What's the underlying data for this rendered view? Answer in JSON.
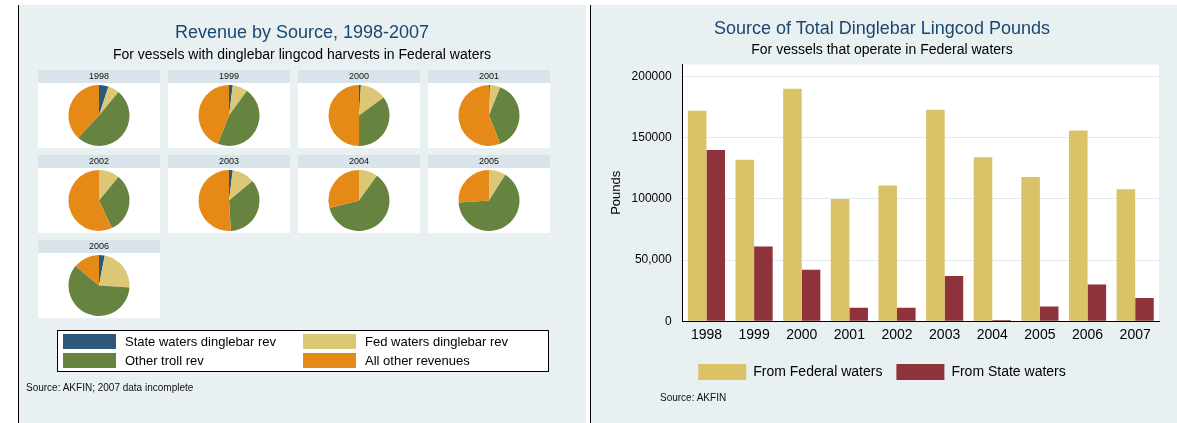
{
  "chart_data": [
    {
      "type": "other",
      "title": "Revenue by Source, 1998-2007",
      "subtitle": "For vessels with dinglebar lingcod harvests in Federal waters",
      "annotations": [
        "Source: AKFIN; 2007 data incomplete"
      ]
    },
    {
      "type": "pie",
      "title": "1998",
      "categories": [
        "State waters dinglebar rev",
        "Fed waters dinglebar rev",
        "Other troll rev",
        "All other revenues"
      ],
      "values": [
        5,
        6,
        51,
        38
      ],
      "colors": [
        "#2d587c",
        "#dcc774",
        "#66843f",
        "#e58a17"
      ],
      "legend": "bottom"
    },
    {
      "type": "pie",
      "title": "1999",
      "categories": [
        null,
        null,
        null,
        null
      ],
      "values": [
        2,
        8,
        46,
        44
      ],
      "colors": [
        "#2d587c",
        "#dcc774",
        "#66843f",
        "#e58a17"
      ]
    },
    {
      "type": "pie",
      "title": "2000",
      "categories": [
        null,
        null,
        null,
        null
      ],
      "values": [
        1,
        14,
        35,
        50
      ],
      "colors": [
        "#2d587c",
        "#dcc774",
        "#66843f",
        "#e58a17"
      ]
    },
    {
      "type": "pie",
      "title": "2001",
      "categories": [
        null,
        null,
        null,
        null
      ],
      "values": [
        0.5,
        5.5,
        38,
        56
      ],
      "colors": [
        "#2d587c",
        "#dcc774",
        "#66843f",
        "#e58a17"
      ]
    },
    {
      "type": "pie",
      "title": "2002",
      "categories": [
        null,
        null,
        null,
        null
      ],
      "values": [
        0,
        11,
        32,
        57
      ],
      "colors": [
        "#2d587c",
        "#dcc774",
        "#66843f",
        "#e58a17"
      ]
    },
    {
      "type": "pie",
      "title": "2003",
      "categories": [
        null,
        null,
        null,
        null
      ],
      "values": [
        2,
        12,
        35,
        51
      ],
      "colors": [
        "#2d587c",
        "#dcc774",
        "#66843f",
        "#e58a17"
      ]
    },
    {
      "type": "pie",
      "title": "2004",
      "categories": [
        null,
        null,
        null,
        null
      ],
      "values": [
        0,
        10,
        61,
        29
      ],
      "colors": [
        "#2d587c",
        "#dcc774",
        "#66843f",
        "#e58a17"
      ]
    },
    {
      "type": "pie",
      "title": "2005",
      "categories": [
        null,
        null,
        null,
        null
      ],
      "values": [
        0,
        9,
        65,
        26
      ],
      "colors": [
        "#2d587c",
        "#dcc774",
        "#66843f",
        "#e58a17"
      ]
    },
    {
      "type": "pie",
      "title": "2006",
      "categories": [
        null,
        null,
        null,
        null
      ],
      "values": [
        3,
        23,
        60,
        14
      ],
      "colors": [
        "#2d587c",
        "#dcc774",
        "#66843f",
        "#e58a17"
      ]
    },
    {
      "type": "bar",
      "title": "Source of Total Dinglebar Lingcod Pounds",
      "subtitle": "For vessels that operate in Federal waters",
      "ylabel": "Pounds",
      "categories": [
        "1998",
        "1999",
        "2000",
        "2001",
        "2002",
        "2003",
        "2004",
        "2005",
        "2006",
        "2007"
      ],
      "series": [
        {
          "name": "From Federal waters",
          "color": "#dbc267",
          "values": [
            172000,
            132000,
            190000,
            100000,
            111000,
            173000,
            134000,
            118000,
            156000,
            108000
          ]
        },
        {
          "name": "From State waters",
          "color": "#8e333c",
          "values": [
            140000,
            61000,
            42000,
            11000,
            11000,
            37000,
            1000,
            12000,
            30000,
            19000
          ]
        }
      ],
      "ylim": [
        0,
        210000
      ],
      "yticks": [
        0,
        {
          "value": 50000,
          "label": "50,000"
        },
        100000,
        150000,
        200000
      ],
      "grid": "y",
      "legend": "bottom",
      "annotations": [
        "Source: AKFIN"
      ]
    }
  ]
}
